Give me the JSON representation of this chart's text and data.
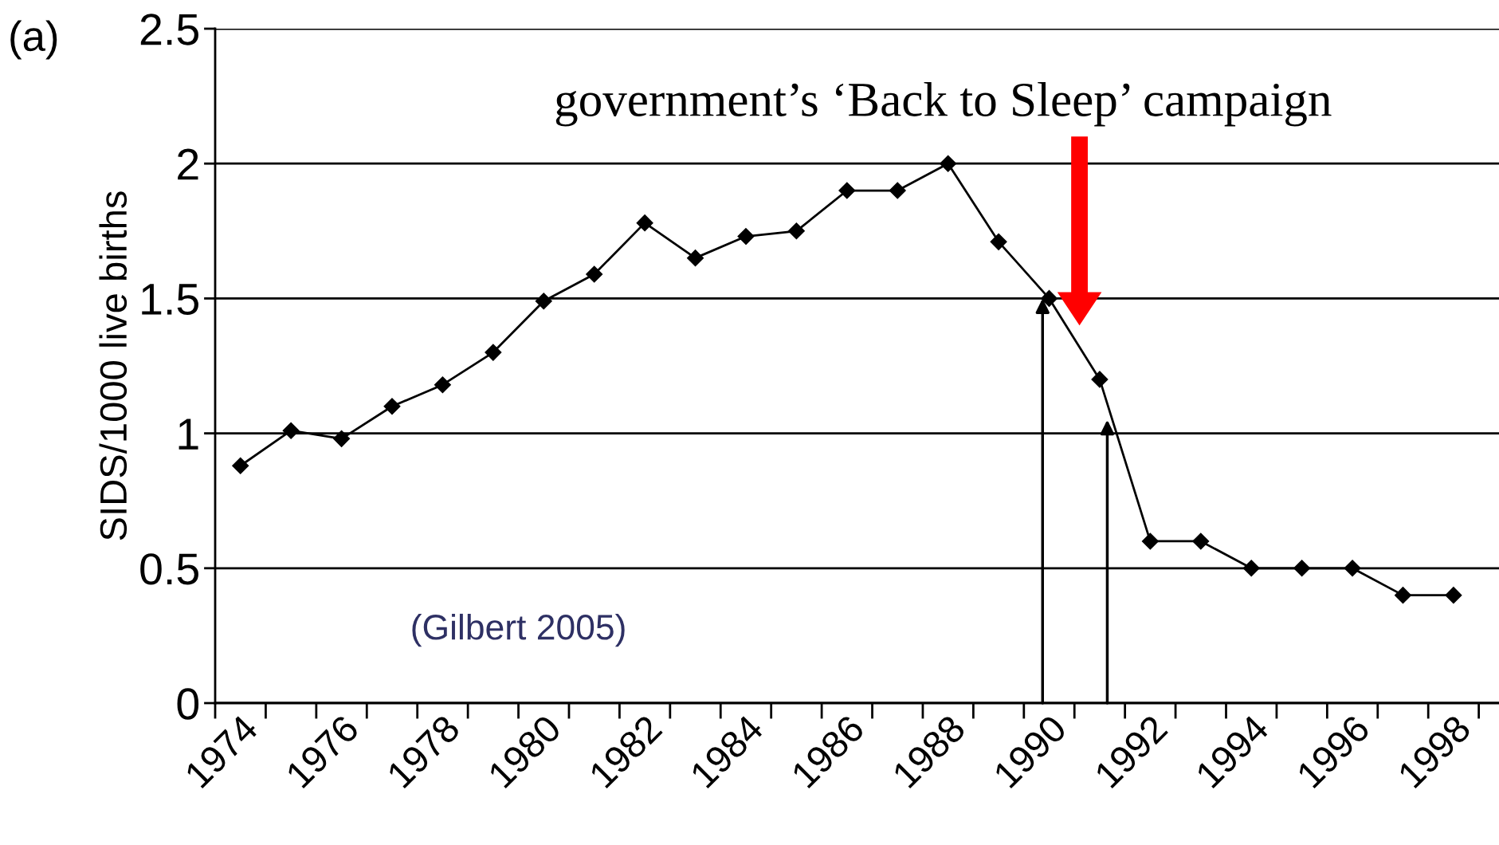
{
  "chart_data": {
    "type": "line",
    "ylabel": "SIDS/1000 live births",
    "categories": [
      "1974",
      null,
      "1976",
      null,
      "1978",
      null,
      "1980",
      null,
      "1982",
      null,
      "1984",
      null,
      "1986",
      null,
      "1988",
      null,
      "1990",
      null,
      "1992",
      null,
      "1994",
      null,
      "1996",
      null,
      "1998"
    ],
    "series": [
      {
        "color": "#000000",
        "values": [
          0.88,
          1.01,
          0.98,
          1.1,
          1.18,
          1.3,
          1.49,
          1.59,
          1.78,
          1.65,
          1.73,
          1.75,
          1.9,
          1.9,
          2.0,
          1.71,
          1.5,
          1.2,
          0.6,
          0.6,
          0.5,
          0.5,
          0.5,
          0.4,
          0.4
        ]
      }
    ],
    "ylim": [
      0,
      2.5
    ],
    "yticks": [
      0,
      0.5,
      1,
      1.5,
      2,
      2.5
    ],
    "grid": "y",
    "marker": "diamond",
    "line_style": "solid",
    "annotations": [
      "(a)",
      "government’s ‘Back to Sleep’ campaign",
      "(Gilbert 2005)"
    ]
  }
}
